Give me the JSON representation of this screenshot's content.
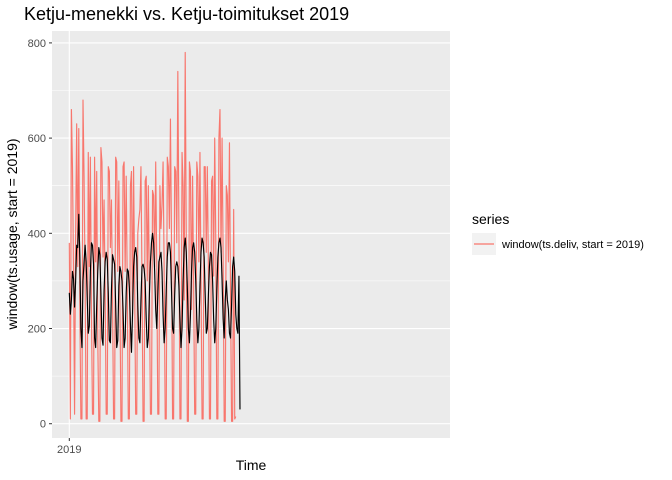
{
  "chart_data": {
    "type": "line",
    "title": "Ketju-menekki vs. Ketju-toimitukset 2019",
    "xlabel": "Time",
    "ylabel": "window(ts.usage, start = 2019)",
    "x_tick_labels": [
      "2019"
    ],
    "x_ticks": [
      2019.0
    ],
    "xlim": [
      2018.955,
      2019.99
    ],
    "ylim": [
      -30,
      825
    ],
    "y_ticks": [
      0,
      200,
      400,
      600,
      800
    ],
    "y_tick_labels": [
      "0",
      "200",
      "400",
      "600",
      "800"
    ],
    "grid": true,
    "legend": {
      "title": "series",
      "position": "right"
    },
    "x_start": 2019.0,
    "x_step": 0.00274,
    "series": [
      {
        "name": "window(ts.deliv, start = 2019)",
        "color": "#F8766D",
        "values": [
          380,
          10,
          660,
          540,
          320,
          20,
          400,
          630,
          330,
          620,
          240,
          10,
          10,
          680,
          520,
          300,
          10,
          10,
          570,
          330,
          560,
          240,
          20,
          20,
          560,
          340,
          530,
          180,
          5,
          5,
          580,
          550,
          350,
          470,
          280,
          20,
          20,
          540,
          530,
          370,
          470,
          270,
          10,
          10,
          560,
          550,
          320,
          510,
          270,
          5,
          5,
          540,
          550,
          320,
          520,
          290,
          10,
          10,
          500,
          530,
          230,
          540,
          300,
          20,
          20,
          400,
          430,
          450,
          540,
          300,
          5,
          5,
          510,
          520,
          300,
          500,
          280,
          20,
          20,
          490,
          480,
          330,
          550,
          330,
          20,
          20,
          500,
          410,
          460,
          550,
          330,
          10,
          10,
          560,
          540,
          410,
          640,
          380,
          10,
          10,
          540,
          530,
          380,
          740,
          420,
          10,
          10,
          570,
          500,
          260,
          780,
          390,
          5,
          5,
          550,
          530,
          240,
          520,
          290,
          20,
          20,
          550,
          520,
          340,
          570,
          300,
          10,
          10,
          540,
          540,
          360,
          540,
          330,
          10,
          10,
          510,
          520,
          310,
          600,
          390,
          10,
          10,
          600,
          660,
          360,
          600,
          350,
          5,
          5,
          500,
          480,
          340,
          590,
          280,
          5,
          5,
          450,
          10,
          15
        ]
      },
      {
        "name": "",
        "color": "#000000",
        "values": [
          275,
          230,
          260,
          320,
          305,
          245,
          300,
          375,
          370,
          440,
          350,
          200,
          160,
          300,
          340,
          375,
          340,
          265,
          190,
          205,
          320,
          380,
          375,
          335,
          180,
          160,
          250,
          320,
          370,
          355,
          275,
          180,
          165,
          280,
          340,
          360,
          345,
          275,
          175,
          170,
          280,
          355,
          345,
          335,
          250,
          160,
          175,
          290,
          330,
          320,
          300,
          240,
          160,
          180,
          275,
          325,
          320,
          285,
          210,
          150,
          230,
          330,
          360,
          370,
          350,
          250,
          180,
          170,
          260,
          330,
          335,
          325,
          300,
          220,
          160,
          180,
          270,
          340,
          380,
          400,
          380,
          320,
          240,
          200,
          270,
          340,
          350,
          360,
          320,
          230,
          170,
          200,
          280,
          350,
          380,
          380,
          360,
          280,
          200,
          190,
          270,
          330,
          340,
          330,
          290,
          220,
          160,
          200,
          300,
          370,
          390,
          360,
          290,
          200,
          170,
          230,
          320,
          370,
          380,
          360,
          300,
          220,
          170,
          200,
          290,
          360,
          390,
          380,
          350,
          270,
          190,
          200,
          270,
          330,
          360,
          355,
          300,
          220,
          170,
          200,
          280,
          350,
          380,
          390,
          370,
          300,
          220,
          180,
          260,
          300,
          260,
          240,
          190,
          180,
          250,
          330,
          350,
          320,
          230,
          200,
          190,
          310,
          30
        ]
      }
    ]
  }
}
